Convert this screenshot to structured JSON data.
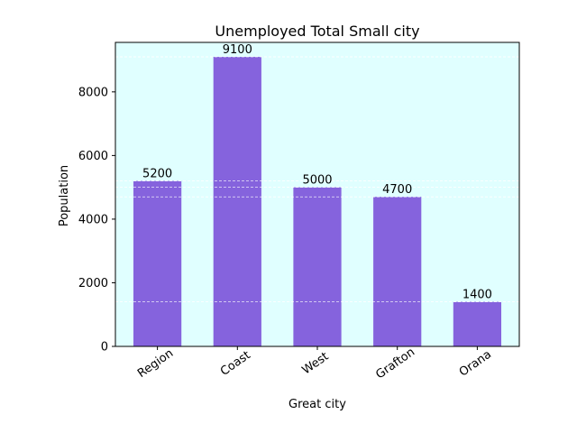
{
  "chart_data": {
    "type": "bar",
    "title": "Unemployed Total Small city",
    "xlabel": "Great city",
    "ylabel": "Population",
    "categories": [
      "Region",
      "Coast",
      "West",
      "Grafton",
      "Orana"
    ],
    "values": [
      5200,
      9100,
      5000,
      4700,
      1400
    ],
    "data_labels": [
      "5200",
      "9100",
      "5000",
      "4700",
      "1400"
    ],
    "ylim": [
      0,
      9555
    ],
    "yticks": [
      0,
      2000,
      4000,
      6000,
      8000
    ],
    "ytick_labels": [
      "0",
      "2000",
      "4000",
      "6000",
      "8000"
    ],
    "grid_lines_at": [
      1400,
      4700,
      5000,
      5200,
      9100
    ],
    "grid": true,
    "colors": {
      "bar": "#8563dd",
      "plot_background": "#e0ffff",
      "grid": "#ffffff"
    }
  }
}
